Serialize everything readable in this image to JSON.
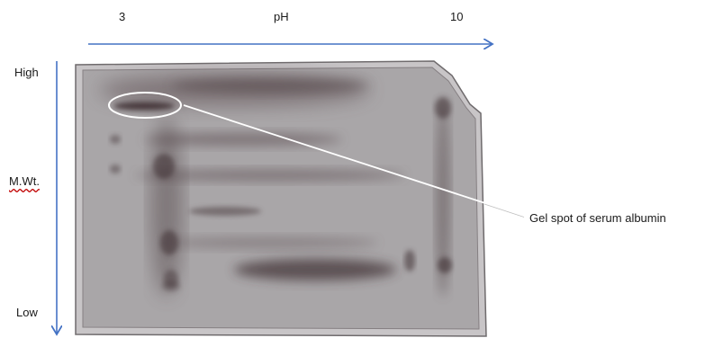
{
  "axes": {
    "ph": {
      "start": "3",
      "label": "pH",
      "end": "10"
    },
    "molecular_weight": {
      "high": "High",
      "label": "M.Wt.",
      "low": "Low"
    }
  },
  "annotation": {
    "callout_text": "Gel spot of serum albumin"
  },
  "colors": {
    "arrow": "#4472c4",
    "gel_background": "#a9a6a8",
    "gel_spot": "#3d2e30",
    "highlight_ellipse": "#ffffff"
  }
}
